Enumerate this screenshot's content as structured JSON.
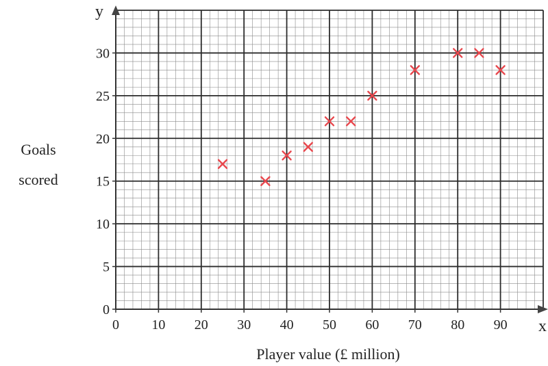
{
  "chart_data": {
    "type": "scatter",
    "title": "",
    "xlabel": "Player value (£ million)",
    "ylabel": [
      "Goals",
      "scored"
    ],
    "x_axis_letter": "x",
    "y_axis_letter": "y",
    "xlim": [
      0,
      100
    ],
    "ylim": [
      0,
      35
    ],
    "x_ticks": [
      0,
      10,
      20,
      30,
      40,
      50,
      60,
      70,
      80,
      90
    ],
    "y_ticks": [
      0,
      5,
      10,
      15,
      20,
      25,
      30
    ],
    "grid": true,
    "marker": "x",
    "marker_color": "#e8474d",
    "points": [
      {
        "x": 25,
        "y": 17
      },
      {
        "x": 35,
        "y": 15
      },
      {
        "x": 40,
        "y": 18
      },
      {
        "x": 45,
        "y": 19
      },
      {
        "x": 50,
        "y": 22
      },
      {
        "x": 55,
        "y": 22
      },
      {
        "x": 60,
        "y": 25
      },
      {
        "x": 70,
        "y": 28
      },
      {
        "x": 80,
        "y": 30
      },
      {
        "x": 85,
        "y": 30
      },
      {
        "x": 90,
        "y": 28
      }
    ]
  }
}
